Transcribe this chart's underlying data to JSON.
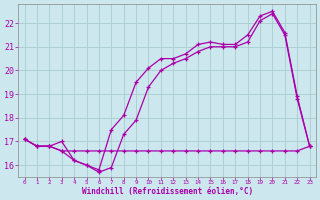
{
  "xlabel": "Windchill (Refroidissement éolien,°C)",
  "background_color": "#cce8ee",
  "grid_color": "#aacccc",
  "line_color": "#aa00aa",
  "x_hours": [
    0,
    1,
    2,
    3,
    4,
    5,
    6,
    7,
    8,
    9,
    10,
    11,
    12,
    13,
    14,
    15,
    16,
    17,
    18,
    19,
    20,
    21,
    22,
    23
  ],
  "temp_actual": [
    17.1,
    16.8,
    16.8,
    17.0,
    16.2,
    16.0,
    15.8,
    17.5,
    18.1,
    19.5,
    20.1,
    20.5,
    20.5,
    20.7,
    21.1,
    21.2,
    21.1,
    21.1,
    21.5,
    22.3,
    22.5,
    21.6,
    18.9,
    16.8
  ],
  "windchill": [
    17.1,
    16.8,
    16.8,
    16.6,
    16.2,
    16.0,
    15.7,
    15.9,
    17.3,
    17.9,
    19.3,
    20.0,
    20.3,
    20.5,
    20.8,
    21.0,
    21.0,
    21.0,
    21.2,
    22.1,
    22.4,
    21.5,
    18.8,
    16.8
  ],
  "flat_line": [
    17.1,
    16.8,
    16.8,
    16.6,
    16.6,
    16.6,
    16.6,
    16.6,
    16.6,
    16.6,
    16.6,
    16.6,
    16.6,
    16.6,
    16.6,
    16.6,
    16.6,
    16.6,
    16.6,
    16.6,
    16.6,
    16.6,
    16.6,
    16.8
  ],
  "ylim": [
    15.5,
    22.8
  ],
  "xlim": [
    -0.5,
    23.5
  ],
  "yticks": [
    16,
    17,
    18,
    19,
    20,
    21,
    22
  ],
  "xticks": [
    0,
    1,
    2,
    3,
    4,
    5,
    6,
    7,
    8,
    9,
    10,
    11,
    12,
    13,
    14,
    15,
    16,
    17,
    18,
    19,
    20,
    21,
    22,
    23
  ]
}
